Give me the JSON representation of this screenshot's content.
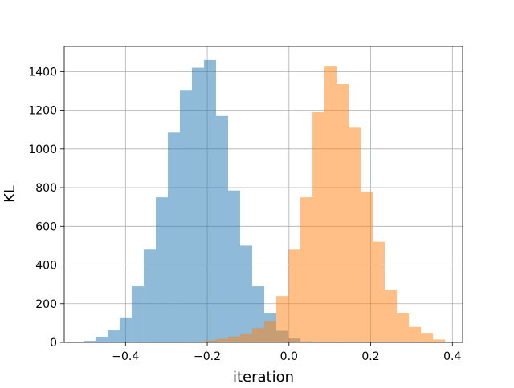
{
  "chart_data": {
    "type": "bar",
    "xlabel": "iteration",
    "ylabel": "KL",
    "xlim": [
      -0.55,
      0.425
    ],
    "ylim": [
      0,
      1530
    ],
    "xticks": [
      -0.4,
      -0.2,
      0.0,
      0.2,
      0.4
    ],
    "xtick_labels": [
      "−0.4",
      "−0.2",
      "0.0",
      "0.2",
      "0.4"
    ],
    "yticks": [
      0,
      200,
      400,
      600,
      800,
      1000,
      1200,
      1400
    ],
    "ytick_labels": [
      "0",
      "200",
      "400",
      "600",
      "800",
      "1000",
      "1200",
      "1400"
    ],
    "grid": true,
    "legend": false,
    "series": [
      {
        "color": "#1f77b4",
        "alpha": 0.5,
        "bin_width": 0.0295,
        "bin_starts": [
          -0.503,
          -0.4735,
          -0.444,
          -0.4145,
          -0.385,
          -0.3555,
          -0.326,
          -0.2965,
          -0.267,
          -0.2375,
          -0.208,
          -0.1785,
          -0.149,
          -0.1195,
          -0.09,
          -0.0605,
          -0.031,
          -0.0015,
          0.028
        ],
        "values": [
          8,
          28,
          62,
          125,
          290,
          480,
          750,
          1085,
          1305,
          1420,
          1460,
          1170,
          785,
          500,
          290,
          150,
          60,
          20,
          5
        ]
      },
      {
        "color": "#ff7f0e",
        "alpha": 0.5,
        "bin_width": 0.0295,
        "bin_starts": [
          -0.2375,
          -0.208,
          -0.1785,
          -0.149,
          -0.1195,
          -0.09,
          -0.0605,
          -0.031,
          -0.0015,
          0.028,
          0.0575,
          0.087,
          0.1165,
          0.146,
          0.1755,
          0.205,
          0.2345,
          0.264,
          0.2935,
          0.323,
          0.3525
        ],
        "values": [
          5,
          10,
          18,
          30,
          42,
          75,
          110,
          240,
          480,
          750,
          1190,
          1430,
          1335,
          1110,
          780,
          520,
          270,
          150,
          80,
          45,
          15
        ]
      }
    ]
  }
}
